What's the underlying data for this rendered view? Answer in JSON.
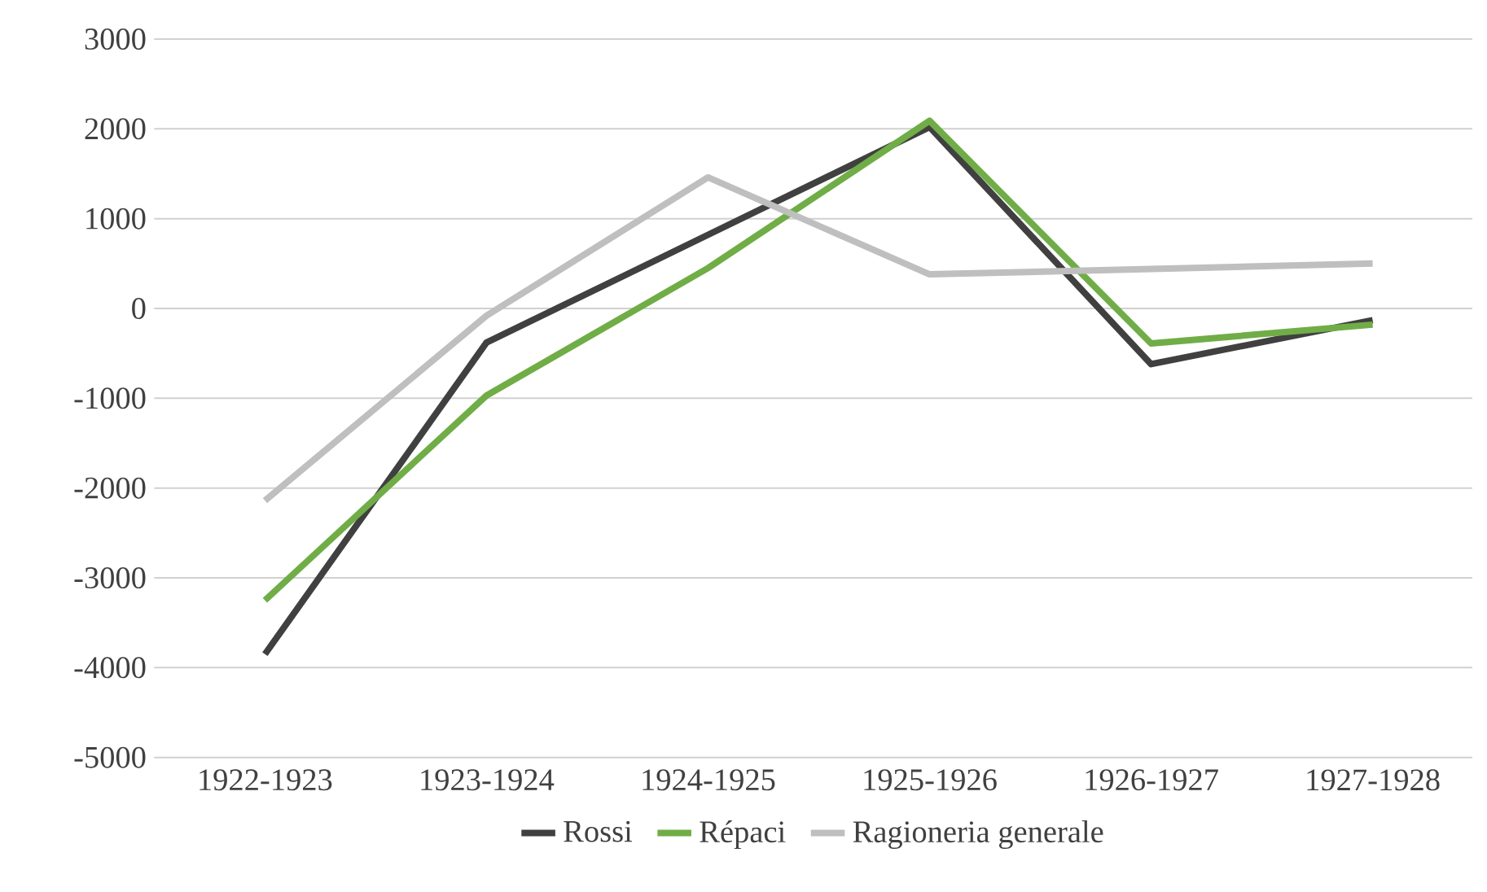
{
  "chart_data": {
    "type": "line",
    "categories": [
      "1922-1923",
      "1923-1924",
      "1924-1925",
      "1925-1926",
      "1926-1927",
      "1927-1928"
    ],
    "series": [
      {
        "name": "Rossi",
        "color": "#404040",
        "values": [
          -3850,
          -380,
          820,
          2020,
          -620,
          -130
        ]
      },
      {
        "name": "Répaci",
        "color": "#70ad47",
        "values": [
          -3250,
          -970,
          450,
          2090,
          -390,
          -180
        ]
      },
      {
        "name": "Ragioneria generale",
        "color": "#bfbfbf",
        "values": [
          -2140,
          -80,
          1460,
          380,
          440,
          500
        ]
      }
    ],
    "ylim": [
      -5000,
      3000
    ],
    "yticks": [
      -5000,
      -4000,
      -3000,
      -2000,
      -1000,
      0,
      1000,
      2000,
      3000
    ],
    "grid": "y",
    "legend": "bottom",
    "marker": "none",
    "line_style": "solid"
  }
}
